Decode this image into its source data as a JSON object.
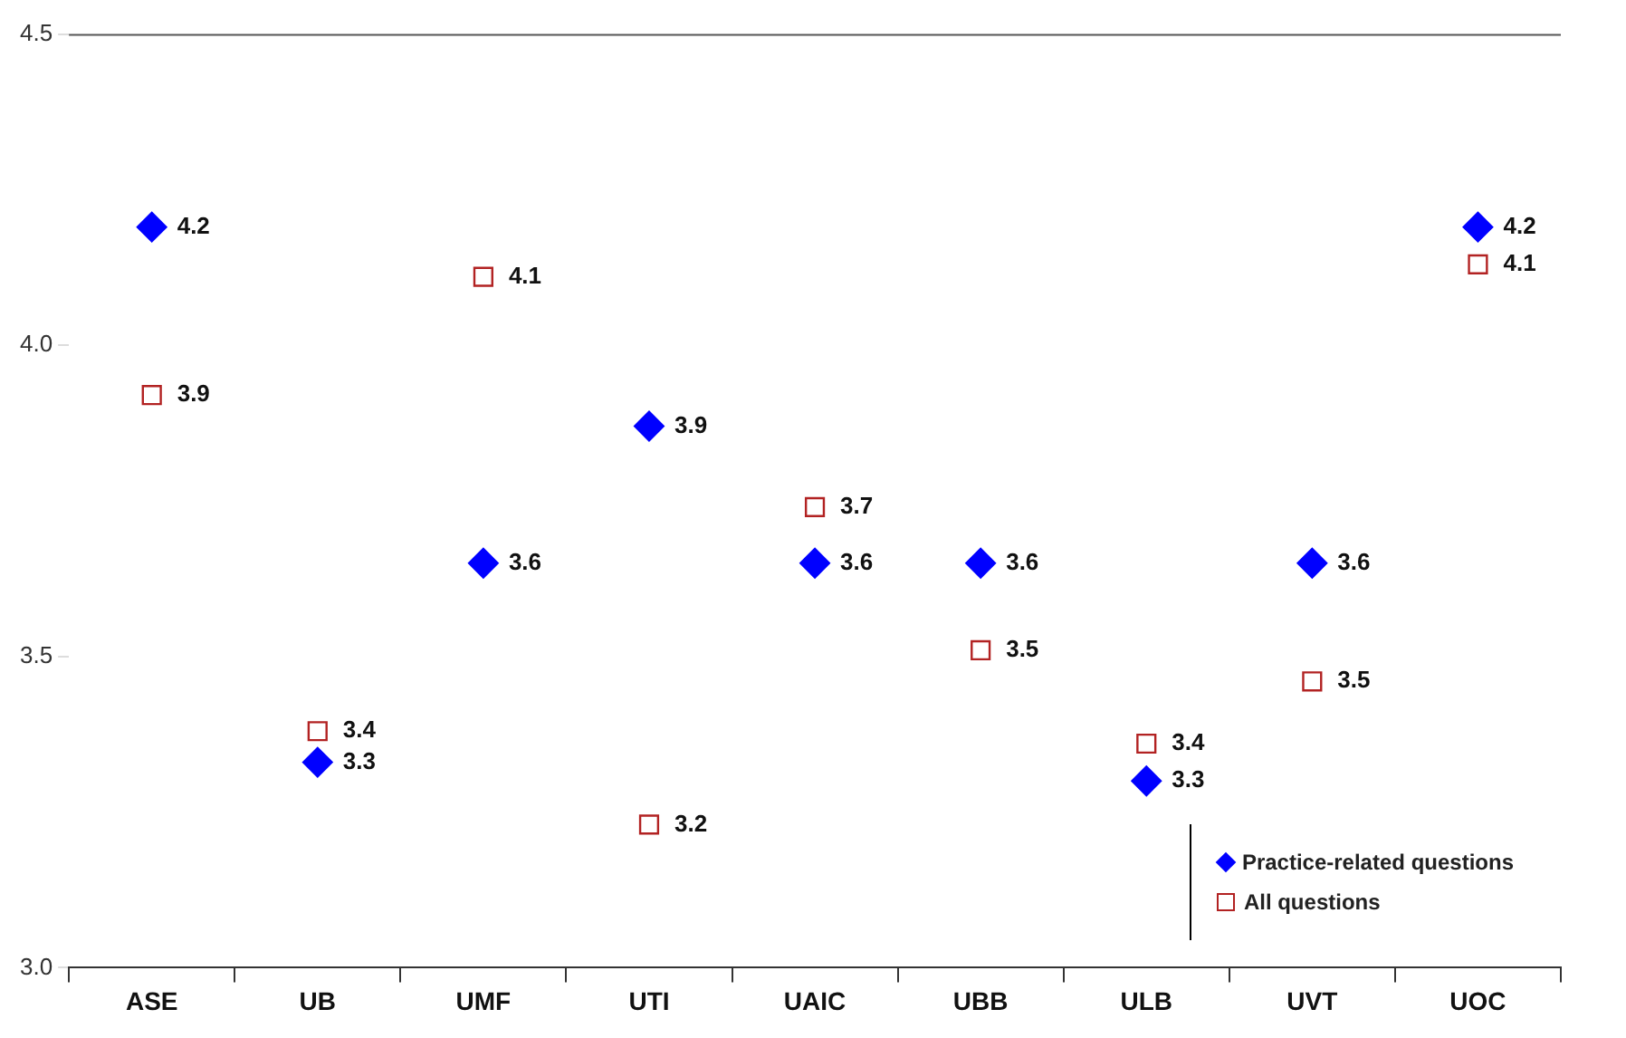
{
  "chart_data": {
    "type": "scatter",
    "categories": [
      "ASE",
      "UB",
      "UMF",
      "UTI",
      "UAIC",
      "UBB",
      "ULB",
      "UVT",
      "UOC"
    ],
    "series": [
      {
        "name": "Practice-related questions",
        "color": "#0000ff",
        "marker": "diamond",
        "values": [
          4.19,
          3.33,
          3.65,
          3.87,
          3.65,
          3.65,
          3.3,
          3.65,
          4.19
        ],
        "value_labels": [
          "4.2",
          "3.3",
          "3.6",
          "3.9",
          "3.6",
          "3.6",
          "3.3",
          "3.6",
          "4.2"
        ]
      },
      {
        "name": "All questions",
        "color": "#b22222",
        "marker": "square",
        "values": [
          3.92,
          3.38,
          4.11,
          3.23,
          3.74,
          3.51,
          3.36,
          3.46,
          4.13
        ],
        "value_labels": [
          "3.9",
          "3.4",
          "4.1",
          "3.2",
          "3.7",
          "3.5",
          "3.4",
          "3.5",
          "4.1"
        ]
      }
    ],
    "ylim": [
      3.0,
      4.5
    ],
    "yticks": [
      {
        "value": 3,
        "label": "3.0"
      },
      {
        "value": 3.5,
        "label": "3.5"
      },
      {
        "value": 4,
        "label": "4.0"
      },
      {
        "value": 4.5,
        "label": "4.5"
      }
    ],
    "grid": false,
    "legend": "bottom right"
  }
}
